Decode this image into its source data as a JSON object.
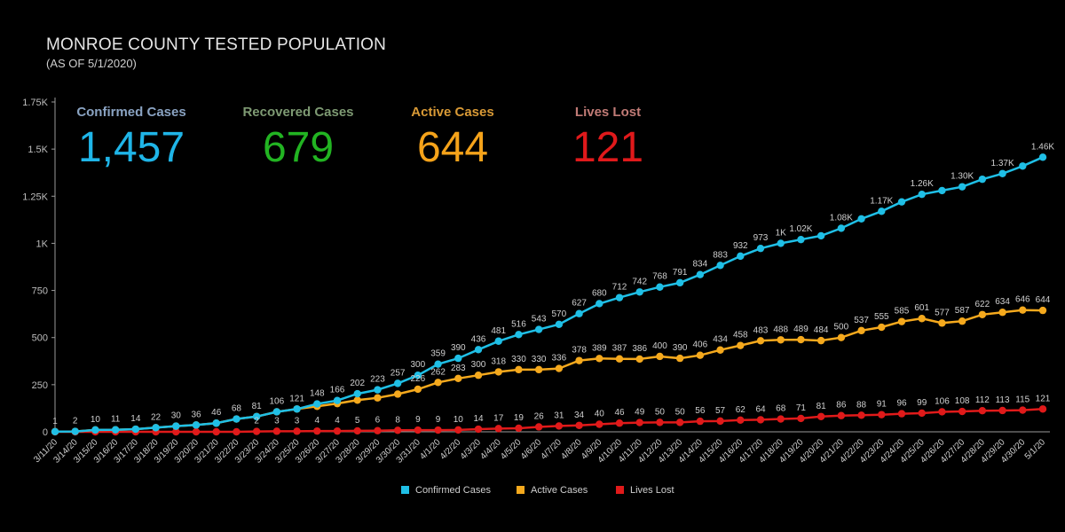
{
  "title": "MONROE COUNTY TESTED POPULATION",
  "subtitle": "(AS OF 5/1/2020)",
  "kpis": [
    {
      "label": "Confirmed Cases",
      "value": "1,457",
      "label_color": "#8aa3c2",
      "value_color": "#1fb5e8"
    },
    {
      "label": "Recovered Cases",
      "value": "679",
      "label_color": "#7e9a73",
      "value_color": "#22b422"
    },
    {
      "label": "Active Cases",
      "value": "644",
      "label_color": "#d99a36",
      "value_color": "#f5a31a"
    },
    {
      "label": "Lives Lost",
      "value": "121",
      "label_color": "#c17b76",
      "value_color": "#e0191b"
    }
  ],
  "colors": {
    "confirmed": "#1fbfe6",
    "active": "#f5a91d",
    "lives": "#e01a1a",
    "axis": "#9a9a9a",
    "grid": "#2a2a2a"
  },
  "chart_data": {
    "type": "line",
    "x": [
      "3/11/20",
      "3/14/20",
      "3/15/20",
      "3/16/20",
      "3/17/20",
      "3/18/20",
      "3/19/20",
      "3/20/20",
      "3/21/20",
      "3/22/20",
      "3/23/20",
      "3/24/20",
      "3/25/20",
      "3/26/20",
      "3/27/20",
      "3/28/20",
      "3/29/20",
      "3/30/20",
      "3/31/20",
      "4/1/20",
      "4/2/20",
      "4/3/20",
      "4/4/20",
      "4/5/20",
      "4/6/20",
      "4/7/20",
      "4/8/20",
      "4/9/20",
      "4/10/20",
      "4/11/20",
      "4/12/20",
      "4/13/20",
      "4/14/20",
      "4/15/20",
      "4/16/20",
      "4/17/20",
      "4/18/20",
      "4/19/20",
      "4/20/20",
      "4/21/20",
      "4/22/20",
      "4/23/20",
      "4/24/20",
      "4/25/20",
      "4/26/20",
      "4/27/20",
      "4/28/20",
      "4/29/20",
      "4/30/20",
      "5/1/20"
    ],
    "ylim": [
      0,
      1750
    ],
    "yticks": [
      0,
      250,
      500,
      750,
      1000,
      1250,
      1500,
      1750
    ],
    "ytick_labels": [
      "0",
      "250",
      "500",
      "750",
      "1K",
      "1.25K",
      "1.5K",
      "1.75K"
    ],
    "series": [
      {
        "name": "Confirmed Cases",
        "color_key": "confirmed",
        "values": [
          1,
          2,
          10,
          11,
          14,
          22,
          30,
          36,
          46,
          68,
          81,
          106,
          121,
          148,
          166,
          202,
          223,
          257,
          300,
          359,
          390,
          436,
          481,
          516,
          543,
          570,
          627,
          680,
          712,
          742,
          768,
          791,
          834,
          883,
          932,
          973,
          1000,
          1020,
          1040,
          1080,
          1130,
          1170,
          1220,
          1260,
          1280,
          1300,
          1340,
          1370,
          1410,
          1457
        ],
        "labels": [
          "1",
          "2",
          "10",
          "11",
          "14",
          "22",
          "30",
          "36",
          "46",
          "68",
          "81",
          "106",
          "121",
          "148",
          "166",
          "202",
          "223",
          "257",
          "300",
          "359",
          "390",
          "436",
          "481",
          "516",
          "543",
          "570",
          "627",
          "680",
          "712",
          "742",
          "768",
          "791",
          "834",
          "883",
          "932",
          "973",
          "1K",
          "1.02K",
          "",
          "1.08K",
          "",
          "1.17K",
          "",
          "1.26K",
          "",
          "1.30K",
          "",
          "1.37K",
          "",
          "1.46K"
        ]
      },
      {
        "name": "Active Cases",
        "color_key": "active",
        "values": [
          1,
          2,
          10,
          11,
          14,
          22,
          30,
          36,
          46,
          68,
          81,
          106,
          121,
          135,
          150,
          168,
          180,
          200,
          226,
          262,
          283,
          300,
          318,
          330,
          330,
          336,
          378,
          389,
          387,
          386,
          400,
          390,
          406,
          434,
          458,
          483,
          488,
          489,
          484,
          500,
          537,
          555,
          585,
          601,
          577,
          587,
          622,
          634,
          646,
          644
        ],
        "labels": [
          "",
          "",
          "",
          "",
          "",
          "",
          "",
          "",
          "",
          "",
          "",
          "",
          "",
          "",
          "",
          "",
          "",
          "",
          "226",
          "262",
          "283",
          "300",
          "318",
          "330",
          "330",
          "336",
          "378",
          "389",
          "387",
          "386",
          "400",
          "390",
          "406",
          "434",
          "458",
          "483",
          "488",
          "489",
          "484",
          "500",
          "537",
          "555",
          "585",
          "601",
          "577",
          "587",
          "622",
          "634",
          "646",
          "644"
        ]
      },
      {
        "name": "Lives Lost",
        "color_key": "lives",
        "values": [
          0,
          0,
          0,
          0,
          0,
          0,
          0,
          0,
          0,
          0,
          2,
          3,
          3,
          4,
          4,
          5,
          6,
          8,
          9,
          9,
          10,
          14,
          17,
          19,
          26,
          31,
          34,
          40,
          46,
          49,
          50,
          50,
          56,
          57,
          62,
          64,
          68,
          71,
          81,
          86,
          88,
          91,
          96,
          99,
          106,
          108,
          112,
          113,
          115,
          121
        ],
        "labels": [
          "",
          "",
          "",
          "",
          "",
          "",
          "",
          "",
          "",
          "",
          "2",
          "3",
          "3",
          "4",
          "4",
          "5",
          "6",
          "8",
          "9",
          "9",
          "10",
          "14",
          "17",
          "19",
          "26",
          "31",
          "34",
          "40",
          "46",
          "49",
          "50",
          "50",
          "56",
          "57",
          "62",
          "64",
          "68",
          "71",
          "81",
          "86",
          "88",
          "91",
          "96",
          "99",
          "106",
          "108",
          "112",
          "113",
          "115",
          "121"
        ]
      }
    ],
    "legend": [
      {
        "label": "Confirmed Cases",
        "color_key": "confirmed"
      },
      {
        "label": "Active Cases",
        "color_key": "active"
      },
      {
        "label": "Lives Lost",
        "color_key": "lives"
      }
    ],
    "legend_position": "bottom-center"
  }
}
